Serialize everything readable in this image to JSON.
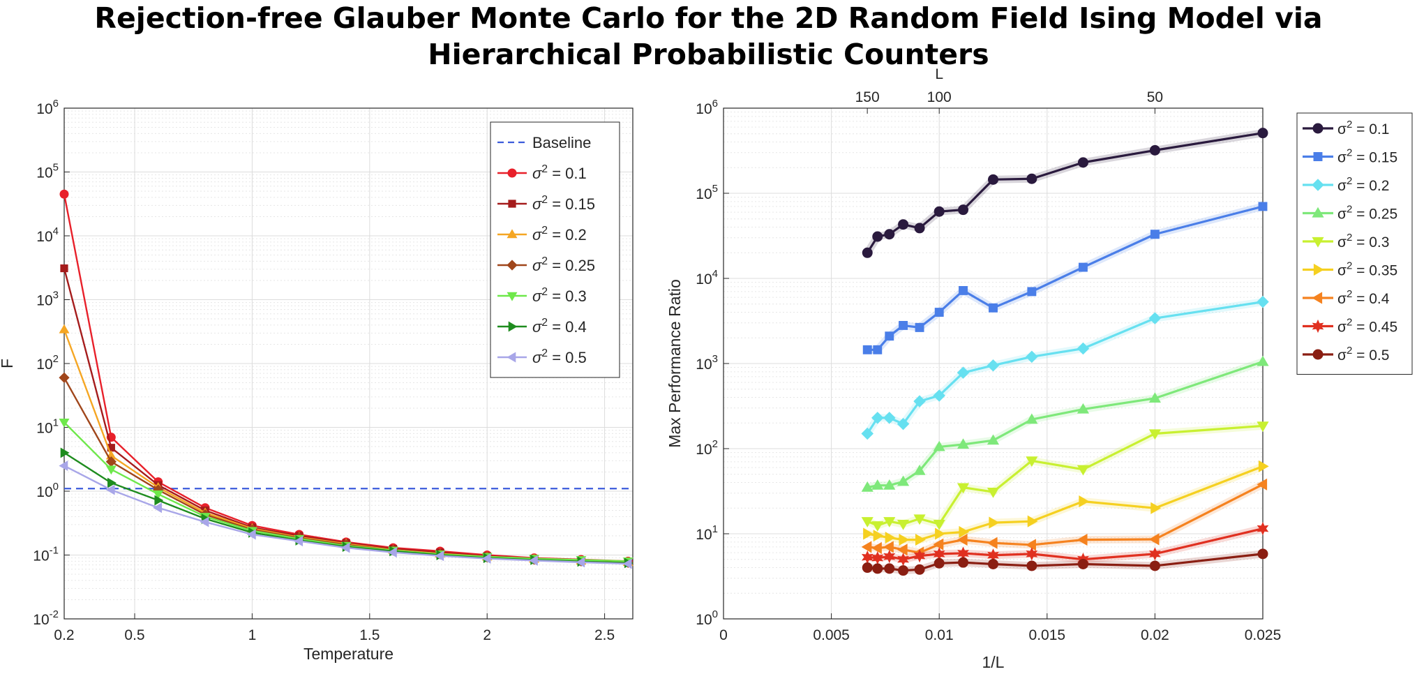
{
  "page_title": {
    "line1": "Rejection-free Glauber Monte Carlo for the 2D Random Field Ising Model via",
    "line2": "Hierarchical Probabilistic Counters"
  },
  "chart_data": [
    {
      "type": "line",
      "title": "",
      "xlabel": "Temperature",
      "ylabel": "F",
      "yscale": "log",
      "xlim": [
        0.2,
        2.62
      ],
      "ylim": [
        0.01,
        1000000
      ],
      "xticks": [
        0.2,
        0.5,
        1,
        1.5,
        2,
        2.5
      ],
      "xtick_labels": [
        "0.2",
        "0.5",
        "1",
        "1.5",
        "2",
        "2.5"
      ],
      "ytick_exponents": [
        -2,
        -1,
        0,
        1,
        2,
        3,
        4,
        5,
        6
      ],
      "ytick_base": "10",
      "grid": true,
      "legend_position": "top-right",
      "baseline": {
        "name": "Baseline",
        "value": 1.1,
        "color": "#3b5bdb"
      },
      "x": [
        0.2,
        0.4,
        0.6,
        0.8,
        1.0,
        1.2,
        1.4,
        1.6,
        1.8,
        2.0,
        2.2,
        2.4,
        2.6
      ],
      "series": [
        {
          "name_prefix": "σ",
          "name_sup": "2",
          "name_suffix": " = 0.1",
          "color": "#e8202a",
          "marker": "circle",
          "values": [
            45000,
            7.0,
            1.4,
            0.55,
            0.29,
            0.21,
            0.16,
            0.13,
            0.115,
            0.1,
            0.09,
            0.085,
            0.08
          ]
        },
        {
          "name_prefix": "σ",
          "name_sup": "2",
          "name_suffix": " = 0.15",
          "color": "#a51c1c",
          "marker": "square",
          "values": [
            3100,
            4.8,
            1.25,
            0.5,
            0.27,
            0.2,
            0.155,
            0.125,
            0.11,
            0.096,
            0.088,
            0.082,
            0.078
          ]
        },
        {
          "name_prefix": "σ",
          "name_sup": "2",
          "name_suffix": " = 0.2",
          "color": "#f5a623",
          "marker": "triangle-up",
          "values": [
            340,
            3.6,
            1.15,
            0.46,
            0.26,
            0.19,
            0.15,
            0.12,
            0.105,
            0.094,
            0.087,
            0.081,
            0.077
          ]
        },
        {
          "name_prefix": "σ",
          "name_sup": "2",
          "name_suffix": " = 0.25",
          "color": "#a0461b",
          "marker": "diamond",
          "values": [
            60,
            2.9,
            1.05,
            0.43,
            0.25,
            0.185,
            0.145,
            0.118,
            0.103,
            0.092,
            0.085,
            0.08,
            0.076
          ]
        },
        {
          "name_prefix": "σ",
          "name_sup": "2",
          "name_suffix": " = 0.3",
          "color": "#6ee84a",
          "marker": "triangle-down",
          "values": [
            12,
            2.2,
            0.9,
            0.4,
            0.24,
            0.18,
            0.14,
            0.118,
            0.103,
            0.094,
            0.088,
            0.084,
            0.08
          ]
        },
        {
          "name_prefix": "σ",
          "name_sup": "2",
          "name_suffix": " = 0.4",
          "color": "#1e8c1e",
          "marker": "triangle-right",
          "values": [
            4.0,
            1.35,
            0.72,
            0.37,
            0.225,
            0.17,
            0.135,
            0.115,
            0.1,
            0.09,
            0.084,
            0.079,
            0.075
          ]
        },
        {
          "name_prefix": "σ",
          "name_sup": "2",
          "name_suffix": " = 0.5",
          "color": "#a8a6e8",
          "marker": "triangle-left",
          "values": [
            2.5,
            1.05,
            0.55,
            0.33,
            0.21,
            0.165,
            0.13,
            0.11,
            0.097,
            0.088,
            0.082,
            0.077,
            0.073
          ]
        }
      ]
    },
    {
      "type": "line",
      "title": "",
      "xlabel": "1/L",
      "ylabel": "Max Performance Ratio",
      "yscale": "log",
      "xlim": [
        0,
        0.025
      ],
      "ylim": [
        1,
        1000000
      ],
      "xticks": [
        0,
        0.005,
        0.01,
        0.015,
        0.02,
        0.025
      ],
      "xtick_labels": [
        "0",
        "0.005",
        "0.01",
        "0.015",
        "0.02",
        "0.025"
      ],
      "ytick_exponents": [
        0,
        1,
        2,
        3,
        4,
        5,
        6
      ],
      "ytick_base": "10",
      "grid": true,
      "legend_position": "outside-right",
      "secondary_xaxis": {
        "label": "L",
        "ticks": [
          150,
          100,
          50
        ],
        "tick_labels": [
          "150",
          "100",
          "50"
        ]
      },
      "x": [
        0.00667,
        0.00714,
        0.00769,
        0.00833,
        0.00909,
        0.01,
        0.01111,
        0.0125,
        0.01429,
        0.01667,
        0.02,
        0.025
      ],
      "series": [
        {
          "name_prefix": "σ",
          "name_sup": "2",
          "name_suffix": " = 0.1",
          "color": "#2a1a3e",
          "marker": "circle",
          "values": [
            20000,
            31000,
            33000,
            43000,
            39000,
            61000,
            64000,
            145000,
            148000,
            230000,
            320000,
            510000
          ]
        },
        {
          "name_prefix": "σ",
          "name_sup": "2",
          "name_suffix": " = 0.15",
          "color": "#4a7ee8",
          "marker": "square",
          "values": [
            1450,
            1450,
            2100,
            2800,
            2650,
            4000,
            7200,
            4500,
            7000,
            13500,
            33000,
            70000
          ]
        },
        {
          "name_prefix": "σ",
          "name_sup": "2",
          "name_suffix": " = 0.2",
          "color": "#66e0f0",
          "marker": "diamond",
          "values": [
            150,
            230,
            230,
            195,
            360,
            420,
            780,
            950,
            1200,
            1500,
            3400,
            5300
          ]
        },
        {
          "name_prefix": "σ",
          "name_sup": "2",
          "name_suffix": " = 0.25",
          "color": "#7ee87a",
          "marker": "triangle-up",
          "values": [
            35,
            37,
            37,
            41,
            55,
            105,
            112,
            125,
            220,
            290,
            390,
            1050
          ]
        },
        {
          "name_prefix": "σ",
          "name_sup": "2",
          "name_suffix": " = 0.3",
          "color": "#c8f030",
          "marker": "triangle-down",
          "values": [
            14,
            12.5,
            14,
            13,
            15,
            13,
            35,
            31,
            72,
            57,
            150,
            185
          ]
        },
        {
          "name_prefix": "σ",
          "name_sup": "2",
          "name_suffix": " = 0.35",
          "color": "#f5d020",
          "marker": "triangle-right",
          "values": [
            10,
            9.5,
            9,
            8.5,
            8.5,
            10,
            10.5,
            13.5,
            14,
            24,
            20,
            62
          ]
        },
        {
          "name_prefix": "σ",
          "name_sup": "2",
          "name_suffix": " = 0.4",
          "color": "#f5821f",
          "marker": "triangle-left",
          "values": [
            7.0,
            6.8,
            7.0,
            6.5,
            6.0,
            7.5,
            8.5,
            7.8,
            7.4,
            8.5,
            8.6,
            38
          ]
        },
        {
          "name_prefix": "σ",
          "name_sup": "2",
          "name_suffix": " = 0.45",
          "color": "#e03020",
          "marker": "hexagram",
          "values": [
            5.3,
            5.2,
            5.4,
            5.0,
            5.5,
            5.8,
            5.9,
            5.6,
            5.8,
            5.0,
            5.8,
            11.5
          ]
        },
        {
          "name_prefix": "σ",
          "name_sup": "2",
          "name_suffix": " = 0.5",
          "color": "#8a1e12",
          "marker": "circle",
          "values": [
            4.0,
            3.9,
            3.9,
            3.7,
            3.8,
            4.5,
            4.6,
            4.4,
            4.2,
            4.4,
            4.2,
            5.8
          ]
        }
      ]
    }
  ]
}
